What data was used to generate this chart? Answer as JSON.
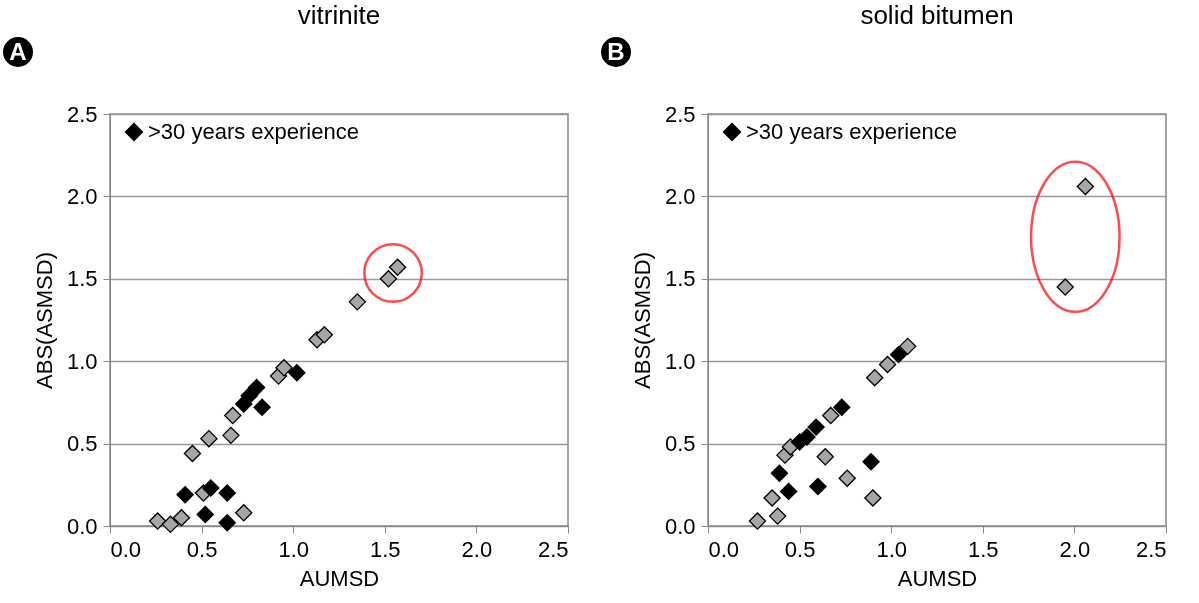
{
  "chart_data": [
    {
      "type": "scatter",
      "title": "vitrinite",
      "xlabel": "AUMSD",
      "ylabel": "ABS(ASMSD)",
      "annotations": [
        "A"
      ],
      "legend": "top left",
      "marker": "diamond",
      "grid": "y",
      "xlim": [
        0,
        2.5
      ],
      "ylim": [
        0,
        2.5
      ],
      "xticks": [
        {
          "value": 0,
          "label": "0.0"
        },
        {
          "value": 0.5,
          "label": "0.5"
        },
        {
          "value": 1,
          "label": "1.0"
        },
        {
          "value": 1.5,
          "label": "1.5"
        },
        {
          "value": 2,
          "label": "2.0"
        },
        {
          "value": 2.5,
          "label": "2.5"
        }
      ],
      "yticks": [
        {
          "value": 0,
          "label": "0.0"
        },
        {
          "value": 0.5,
          "label": "0.5"
        },
        {
          "value": 1,
          "label": "1.0"
        },
        {
          "value": 1.5,
          "label": "1.5"
        },
        {
          "value": 2,
          "label": "2.0"
        },
        {
          "value": 2.5,
          "label": "2.5"
        }
      ],
      "series": [
        {
          "color": "#a6a6a6",
          "x": [
            1.57,
            1.52,
            1.35,
            1.13,
            1.17,
            0.92,
            0.95,
            0.67,
            0.54,
            0.66,
            0.45,
            0.51,
            0.73,
            0.26,
            0.33,
            0.39
          ],
          "values": [
            1.57,
            1.5,
            1.36,
            1.13,
            1.16,
            0.91,
            0.96,
            0.67,
            0.53,
            0.55,
            0.44,
            0.2,
            0.08,
            0.03,
            0.01,
            0.05
          ]
        },
        {
          "name": ">30 years experience",
          "color": "#000000",
          "x": [
            1.02,
            0.8,
            0.76,
            0.83,
            0.73,
            0.41,
            0.55,
            0.64,
            0.52,
            0.64
          ],
          "values": [
            0.93,
            0.84,
            0.79,
            0.72,
            0.74,
            0.19,
            0.23,
            0.2,
            0.07,
            0.02
          ]
        }
      ]
    },
    {
      "type": "scatter",
      "title": "solid bitumen",
      "xlabel": "AUMSD",
      "ylabel": "ABS(ASMSD)",
      "annotations": [
        "B"
      ],
      "legend": "top left",
      "marker": "diamond",
      "grid": "y",
      "xlim": [
        0,
        2.5
      ],
      "ylim": [
        0,
        2.5
      ],
      "xticks": [
        {
          "value": 0,
          "label": "0.0"
        },
        {
          "value": 0.5,
          "label": "0.5"
        },
        {
          "value": 1,
          "label": "1.0"
        },
        {
          "value": 1.5,
          "label": "1.5"
        },
        {
          "value": 2,
          "label": "2.0"
        },
        {
          "value": 2.5,
          "label": "2.5"
        }
      ],
      "yticks": [
        {
          "value": 0,
          "label": "0.0"
        },
        {
          "value": 0.5,
          "label": "0.5"
        },
        {
          "value": 1,
          "label": "1.0"
        },
        {
          "value": 1.5,
          "label": "1.5"
        },
        {
          "value": 2,
          "label": "2.0"
        },
        {
          "value": 2.5,
          "label": "2.5"
        }
      ],
      "series": [
        {
          "color": "#a6a6a6",
          "x": [
            2.06,
            1.95,
            1.09,
            0.98,
            0.91,
            0.67,
            0.42,
            0.45,
            0.64,
            0.76,
            0.9,
            0.35,
            0.38,
            0.27
          ],
          "values": [
            2.06,
            1.45,
            1.09,
            0.98,
            0.9,
            0.67,
            0.43,
            0.48,
            0.42,
            0.29,
            0.17,
            0.17,
            0.06,
            0.03
          ]
        },
        {
          "name": ">30 years experience",
          "color": "#000000",
          "x": [
            1.04,
            0.73,
            0.59,
            0.54,
            0.5,
            0.39,
            0.44,
            0.6,
            0.89
          ],
          "values": [
            1.04,
            0.72,
            0.6,
            0.54,
            0.51,
            0.32,
            0.21,
            0.24,
            0.39
          ]
        }
      ]
    }
  ]
}
